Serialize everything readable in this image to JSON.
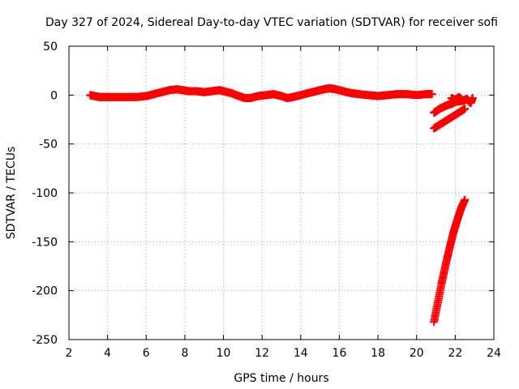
{
  "chart_data": {
    "type": "scatter",
    "title": "Day 327 of 2024, Sidereal Day-to-day VTEC variation (SDTVAR) for receiver sofi",
    "xlabel": "GPS time / hours",
    "ylabel": "SDTVAR / TECUs",
    "xlim": [
      2,
      24
    ],
    "ylim": [
      -250,
      50
    ],
    "xticks": [
      2,
      4,
      6,
      8,
      10,
      12,
      14,
      16,
      18,
      20,
      22,
      24
    ],
    "yticks": [
      50,
      0,
      -50,
      -100,
      -150,
      -200,
      -250
    ],
    "xtick_labels": [
      "2",
      "4",
      "6",
      "8",
      "10",
      "12",
      "14",
      "16",
      "18",
      "20",
      "22",
      "24"
    ],
    "ytick_labels": [
      "50",
      "0",
      "-50",
      "-100",
      "-150",
      "-200",
      "-250"
    ],
    "grid": true,
    "legend": "none",
    "marker": "plus",
    "series": [
      {
        "color": "#ff0000",
        "x": [
          3.1,
          3.3,
          3.6,
          4.0,
          4.5,
          5.0,
          5.5,
          6.0,
          6.4,
          6.8,
          7.2,
          7.6,
          7.9,
          8.2,
          8.6,
          9.0,
          9.4,
          9.8,
          10.0,
          10.4,
          10.8,
          11.1,
          11.4,
          11.8,
          12.2,
          12.6,
          13.0,
          13.3,
          13.6,
          14.0,
          14.4,
          14.8,
          15.2,
          15.5,
          15.8,
          16.2,
          16.6,
          17.0,
          17.5,
          18.0,
          18.5,
          19.0,
          19.5,
          20.0,
          20.5,
          20.8
        ],
        "y": [
          0,
          -1,
          -2,
          -2,
          -2,
          -2,
          -2,
          -1,
          1,
          3,
          5,
          6,
          5,
          4,
          4,
          3,
          4,
          5,
          4,
          2,
          -1,
          -3,
          -3,
          -1,
          0,
          1,
          -1,
          -3,
          -2,
          0,
          2,
          4,
          6,
          7,
          6,
          4,
          2,
          1,
          0,
          -1,
          0,
          1,
          1,
          0,
          1,
          1
        ]
      },
      {
        "color": "#ff0000",
        "x": [
          20.9,
          21.2,
          21.5,
          21.8,
          22.0,
          22.3,
          22.5
        ],
        "y": [
          -18,
          -14,
          -11,
          -9,
          -7,
          -6,
          -5
        ]
      },
      {
        "color": "#ff0000",
        "x": [
          20.9,
          21.3,
          21.7,
          22.1,
          22.5
        ],
        "y": [
          -34,
          -29,
          -24,
          -19,
          -14
        ]
      },
      {
        "color": "#ff0000",
        "x": [
          21.8,
          22.0,
          22.2,
          22.4,
          22.6,
          22.8,
          22.9
        ],
        "y": [
          -3,
          -5,
          -2,
          -6,
          -4,
          -8,
          -3
        ]
      },
      {
        "color": "#ff0000",
        "x": [
          20.9,
          21.1,
          21.3,
          21.5,
          21.7,
          21.9,
          22.1,
          22.3,
          22.5
        ],
        "y": [
          -232,
          -212,
          -192,
          -174,
          -157,
          -141,
          -128,
          -116,
          -107
        ]
      }
    ]
  }
}
